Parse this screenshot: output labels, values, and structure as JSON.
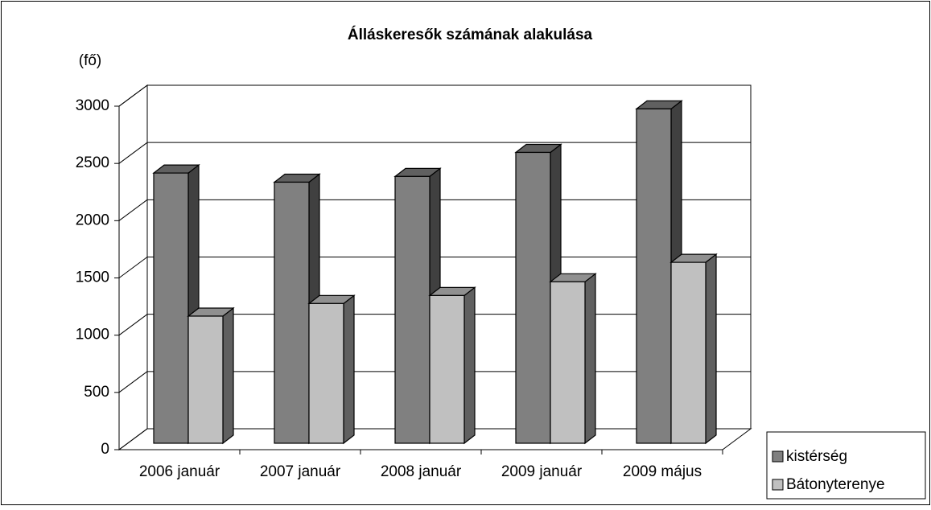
{
  "chart_data": {
    "type": "bar3d",
    "title": "Álláskeresők számának alakulása",
    "y_label": "(fő)",
    "categories": [
      "2006 január",
      "2007 január",
      "2008 január",
      "2009 január",
      "2009 május"
    ],
    "series": [
      {
        "name": "kistérség",
        "color": "#808080",
        "values": [
          2360,
          2280,
          2330,
          2540,
          2920
        ]
      },
      {
        "name": "Bátonyterenye",
        "color": "#c0c0c0",
        "values": [
          1110,
          1220,
          1290,
          1410,
          1580
        ]
      }
    ],
    "ylim": [
      0,
      3000
    ],
    "yticks": [
      0,
      500,
      1000,
      1500,
      2000,
      2500,
      3000
    ],
    "grid": true,
    "legend": "right"
  }
}
